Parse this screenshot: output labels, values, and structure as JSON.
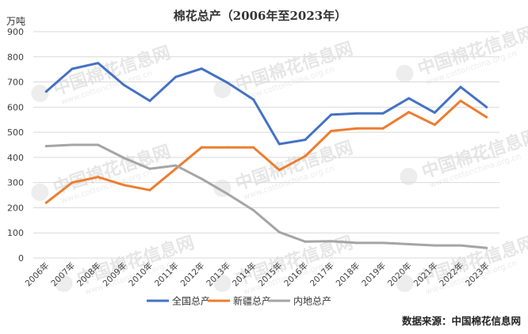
{
  "chart_data": {
    "type": "line",
    "title": "棉花总产（2006年至2023年）",
    "y_unit": "万吨",
    "categories": [
      "2006年",
      "2007年",
      "2008年",
      "2009年",
      "2010年",
      "2011年",
      "2012年",
      "2013年",
      "2014年",
      "2015年",
      "2016年",
      "2017年",
      "2018年",
      "2019年",
      "2020年",
      "2021年",
      "2022年",
      "2023年"
    ],
    "ylim": [
      0,
      900
    ],
    "yticks": [
      0,
      100,
      200,
      300,
      400,
      500,
      600,
      700,
      800,
      900
    ],
    "grid": true,
    "legend_position": "bottom",
    "series": [
      {
        "name": "全国总产",
        "color": "#4472c4",
        "values": [
          662,
          752,
          775,
          688,
          625,
          720,
          753,
          697,
          630,
          453,
          470,
          570,
          575,
          575,
          635,
          578,
          680,
          600
        ]
      },
      {
        "name": "新疆总产",
        "color": "#ed7d31",
        "values": [
          220,
          300,
          322,
          290,
          270,
          355,
          440,
          440,
          440,
          350,
          405,
          505,
          515,
          515,
          580,
          530,
          625,
          560
        ]
      },
      {
        "name": "内地总产",
        "color": "#a5a5a5",
        "values": [
          445,
          450,
          450,
          398,
          355,
          368,
          315,
          255,
          190,
          103,
          65,
          67,
          60,
          60,
          55,
          50,
          50,
          40
        ]
      }
    ]
  },
  "source": "数据来源：中国棉花信息网",
  "watermark": {
    "name": "中国棉花信息网",
    "url": "www.cottonchina.org.cn"
  }
}
